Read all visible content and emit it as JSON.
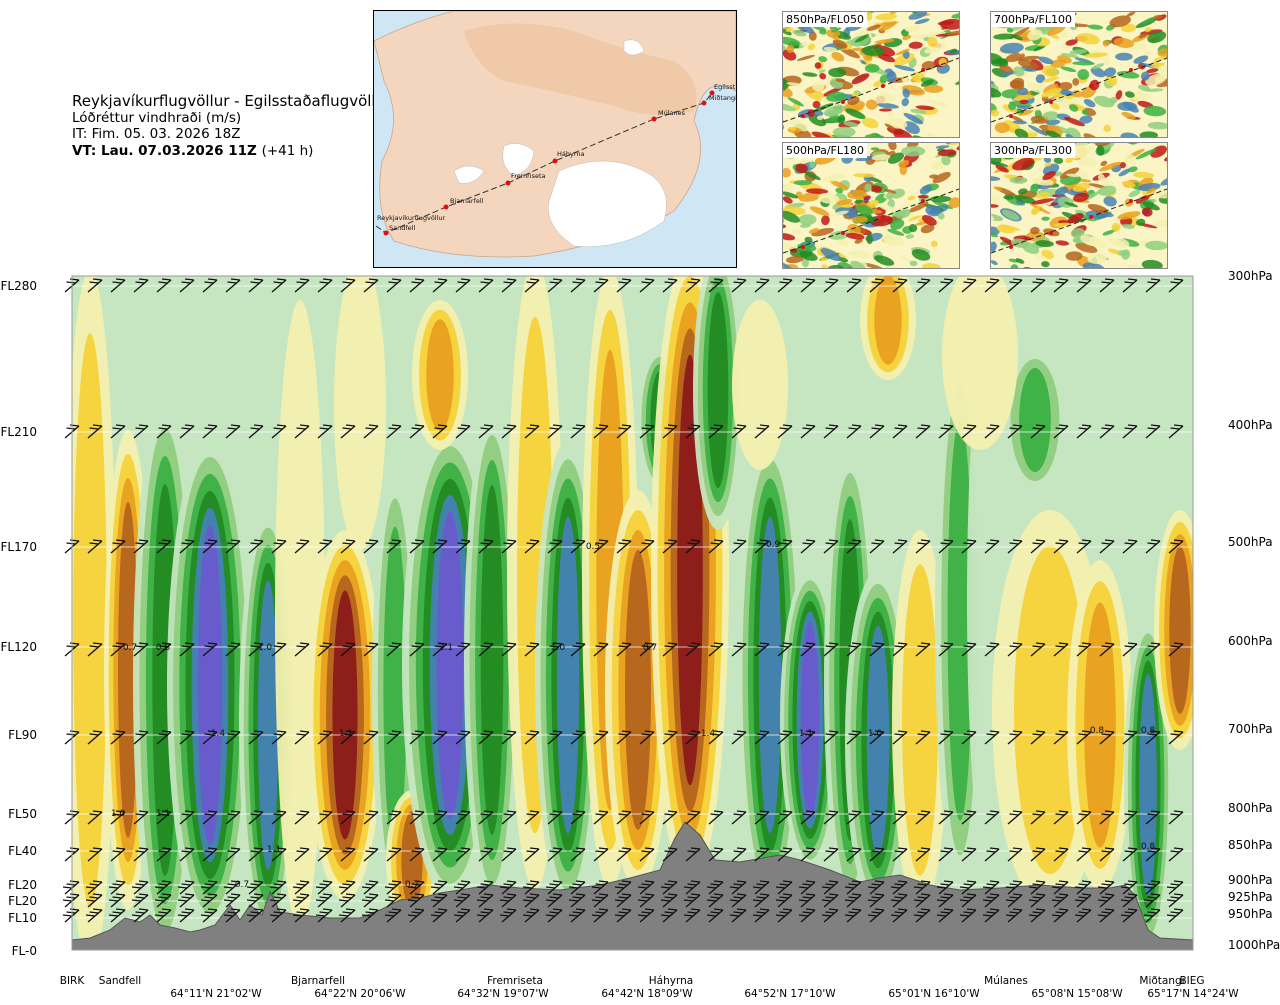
{
  "header": {
    "route_title": "Reykjavíkurflugvöllur - Egilsstaðaflugvöllur",
    "subtitle": "Lóðréttur vindhraði (m/s)",
    "init_time": "IT: Fim. 05. 03. 2026 18Z",
    "valid_time_label": "VT: Lau. 07.03.2026 11Z",
    "lead_time": "(+41 h)"
  },
  "route_map": {
    "waypoints": [
      "Reykjavíkurflugvöllur",
      "Sandfell",
      "Bjarnarfell",
      "Fremriseta",
      "Háhyrna",
      "Múlanes",
      "Miðtangi",
      "Egilsst"
    ]
  },
  "thumbnails": [
    {
      "label": "850hPa/FL050"
    },
    {
      "label": "700hPa/FL100"
    },
    {
      "label": "500hPa/FL180"
    },
    {
      "label": "300hPa/FL300"
    }
  ],
  "chart_data": {
    "type": "heatmap",
    "variable": "Lóðréttur vindhraði (m/s)",
    "flight_levels": [
      "FL280",
      "FL210",
      "FL170",
      "FL120",
      "FL90",
      "FL50",
      "FL40",
      "FL20",
      "FL20",
      "FL10",
      "FL-0"
    ],
    "pressure_levels": [
      "300hPa",
      "400hPa",
      "500hPa",
      "600hPa",
      "700hPa",
      "800hPa",
      "850hPa",
      "900hPa",
      "925hPa",
      "950hPa",
      "1000hPa"
    ],
    "stations": [
      "BIRK",
      "Sandfell",
      "Bjarnarfell",
      "Fremriseta",
      "Háhyrna",
      "Múlanes",
      "Miðtangi",
      "BIEG"
    ],
    "coordinates": [
      "64°11'N 21°02'W",
      "64°22'N 20°06'W",
      "64°32'N 19°07'W",
      "64°42'N 18°09'W",
      "64°52'N 17°10'W",
      "65°01'N 16°10'W",
      "65°08'N 15°08'W",
      "65°17'N 14°24'W"
    ],
    "color_scale": [
      "#6a5acd",
      "#4682b4",
      "#228b22",
      "#3cb043",
      "#8fce7f",
      "#c5e6c0",
      "#f3f0b0",
      "#f5d23a",
      "#e8a020",
      "#b5651d",
      "#8b1a1a"
    ],
    "annotations": [
      "0.7",
      "0.8",
      "1.0",
      "2.1",
      "1.0",
      "0.7",
      "1.4",
      "1.1",
      "1.4",
      "1.1",
      "1.0",
      "0.8",
      "0.9",
      "0.5",
      "1.0",
      "1.1",
      "1.1",
      "0.7",
      "0.7",
      "0.8",
      "0.8"
    ]
  }
}
